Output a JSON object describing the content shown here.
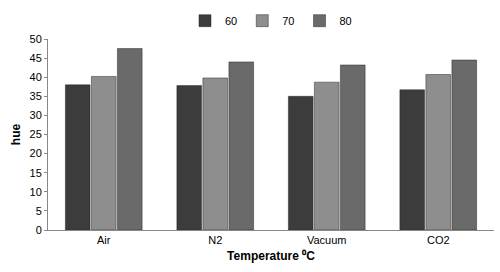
{
  "chart_data": {
    "type": "bar",
    "categories": [
      "Air",
      "N2",
      "Vacuum",
      "CO2"
    ],
    "series": [
      {
        "name": "60",
        "color": "#3c3c3c",
        "values": [
          38,
          37.8,
          35,
          36.7
        ]
      },
      {
        "name": "70",
        "color": "#8e8e8e",
        "values": [
          40.2,
          39.8,
          38.7,
          40.7
        ]
      },
      {
        "name": "80",
        "color": "#6a6a6a",
        "values": [
          47.5,
          44,
          43.2,
          44.5
        ]
      }
    ],
    "x_label": "Temperature ⁰C",
    "y_label": "hue",
    "ylim": [
      0,
      50
    ],
    "yticks": [
      0,
      5,
      10,
      15,
      20,
      25,
      30,
      35,
      40,
      45,
      50
    ],
    "grid": false,
    "legend": "top"
  }
}
